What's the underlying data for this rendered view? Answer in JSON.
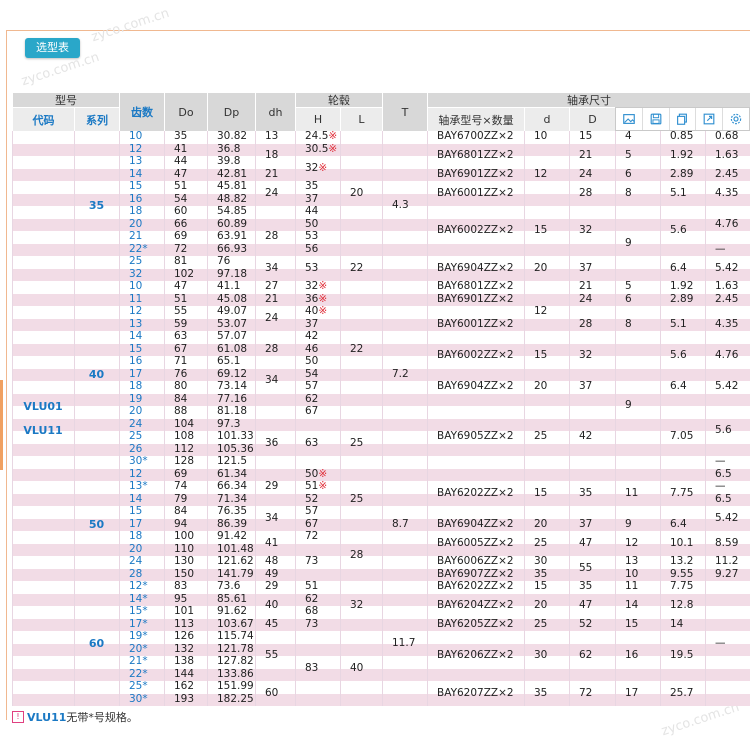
{
  "toolbar": {
    "select_table": "选型表"
  },
  "watermarks": [
    "zyco.com.cn",
    "zyco.com.cn",
    "zyco.com.cn"
  ],
  "header": {
    "model": "型号",
    "code": "代码",
    "series": "系列",
    "teeth": "齿数",
    "Do": "Do",
    "Dp": "Dp",
    "dh": "dh",
    "hub": "轮毂",
    "H": "H",
    "L": "L",
    "T": "T",
    "bearing_dims": "轴承尺寸",
    "bearing_model": "轴承型号×数量",
    "d": "d",
    "D": "D"
  },
  "icons": [
    "image-icon",
    "save-icon",
    "copy-icon",
    "export-icon",
    "settings-icon"
  ],
  "codes": [
    "VLU01",
    "VLU11"
  ],
  "series": [
    "35",
    "40",
    "50",
    "60"
  ],
  "rows": [
    [
      "10",
      "35",
      "30.82"
    ],
    [
      "12",
      "41",
      "36.8"
    ],
    [
      "13",
      "44",
      "39.8"
    ],
    [
      "14",
      "47",
      "42.81"
    ],
    [
      "15",
      "51",
      "45.81"
    ],
    [
      "16",
      "54",
      "48.82"
    ],
    [
      "18",
      "60",
      "54.85"
    ],
    [
      "20",
      "66",
      "60.89"
    ],
    [
      "21",
      "69",
      "63.91"
    ],
    [
      "22*",
      "72",
      "66.93"
    ],
    [
      "25",
      "81",
      "76"
    ],
    [
      "32",
      "102",
      "97.18"
    ],
    [
      "10",
      "47",
      "41.1"
    ],
    [
      "11",
      "51",
      "45.08"
    ],
    [
      "12",
      "55",
      "49.07"
    ],
    [
      "13",
      "59",
      "53.07"
    ],
    [
      "14",
      "63",
      "57.07"
    ],
    [
      "15",
      "67",
      "61.08"
    ],
    [
      "16",
      "71",
      "65.1"
    ],
    [
      "17",
      "76",
      "69.12"
    ],
    [
      "18",
      "80",
      "73.14"
    ],
    [
      "19",
      "84",
      "77.16"
    ],
    [
      "20",
      "88",
      "81.18"
    ],
    [
      "24",
      "104",
      "97.3"
    ],
    [
      "25",
      "108",
      "101.33"
    ],
    [
      "26",
      "112",
      "105.36"
    ],
    [
      "30*",
      "128",
      "121.5"
    ],
    [
      "12",
      "69",
      "61.34"
    ],
    [
      "13*",
      "74",
      "66.34"
    ],
    [
      "14",
      "79",
      "71.34"
    ],
    [
      "15",
      "84",
      "76.35"
    ],
    [
      "17",
      "94",
      "86.39"
    ],
    [
      "18",
      "100",
      "91.42"
    ],
    [
      "20",
      "110",
      "101.48"
    ],
    [
      "24",
      "130",
      "121.62"
    ],
    [
      "28",
      "150",
      "141.79"
    ],
    [
      "12*",
      "83",
      "73.6"
    ],
    [
      "14*",
      "95",
      "85.61"
    ],
    [
      "15*",
      "101",
      "91.62"
    ],
    [
      "17*",
      "113",
      "103.67"
    ],
    [
      "19*",
      "126",
      "115.74"
    ],
    [
      "20*",
      "132",
      "121.78"
    ],
    [
      "21*",
      "138",
      "127.82"
    ],
    [
      "22*",
      "144",
      "133.86"
    ],
    [
      "25*",
      "162",
      "151.99"
    ],
    [
      "30*",
      "193",
      "182.25"
    ]
  ],
  "dh": [
    {
      "r": [
        0,
        0
      ],
      "v": "13"
    },
    {
      "r": [
        1,
        2
      ],
      "v": "18"
    },
    {
      "r": [
        3,
        3
      ],
      "v": "21"
    },
    {
      "r": [
        4,
        5
      ],
      "v": "24"
    },
    {
      "r": [
        7,
        9
      ],
      "v": "28"
    },
    {
      "r": [
        10,
        11
      ],
      "v": "34"
    },
    {
      "r": [
        12,
        12
      ],
      "v": "27"
    },
    {
      "r": [
        13,
        13
      ],
      "v": "21"
    },
    {
      "r": [
        14,
        15
      ],
      "v": "24"
    },
    {
      "r": [
        16,
        18
      ],
      "v": "28"
    },
    {
      "r": [
        19,
        20
      ],
      "v": "34"
    },
    {
      "r": [
        23,
        26
      ],
      "v": "36"
    },
    {
      "r": [
        27,
        29
      ],
      "v": "29"
    },
    {
      "r": [
        30,
        31
      ],
      "v": "34"
    },
    {
      "r": [
        32,
        33
      ],
      "v": "41"
    },
    {
      "r": [
        34,
        34
      ],
      "v": "48"
    },
    {
      "r": [
        35,
        35
      ],
      "v": "49"
    },
    {
      "r": [
        36,
        36
      ],
      "v": "29"
    },
    {
      "r": [
        37,
        38
      ],
      "v": "40"
    },
    {
      "r": [
        39,
        39
      ],
      "v": "45"
    },
    {
      "r": [
        40,
        43
      ],
      "v": "55"
    },
    {
      "r": [
        44,
        45
      ],
      "v": "60"
    }
  ],
  "H": [
    {
      "r": [
        0,
        0
      ],
      "v": "24.5",
      "m": "※"
    },
    {
      "r": [
        1,
        1
      ],
      "v": "30.5",
      "m": "※"
    },
    {
      "r": [
        2,
        3
      ],
      "v": "32",
      "m": "※"
    },
    {
      "r": [
        4,
        4
      ],
      "v": "35"
    },
    {
      "r": [
        5,
        5
      ],
      "v": "37"
    },
    {
      "r": [
        6,
        6
      ],
      "v": "44"
    },
    {
      "r": [
        7,
        7
      ],
      "v": "50"
    },
    {
      "r": [
        8,
        8
      ],
      "v": "53"
    },
    {
      "r": [
        9,
        9
      ],
      "v": "56"
    },
    {
      "r": [
        10,
        11
      ],
      "v": "53"
    },
    {
      "r": [
        12,
        12
      ],
      "v": "32",
      "m": "※"
    },
    {
      "r": [
        13,
        13
      ],
      "v": "36",
      "m": "※"
    },
    {
      "r": [
        14,
        14
      ],
      "v": "40",
      "m": "※"
    },
    {
      "r": [
        15,
        15
      ],
      "v": "37"
    },
    {
      "r": [
        16,
        16
      ],
      "v": "42"
    },
    {
      "r": [
        17,
        17
      ],
      "v": "46"
    },
    {
      "r": [
        18,
        18
      ],
      "v": "50"
    },
    {
      "r": [
        19,
        19
      ],
      "v": "54"
    },
    {
      "r": [
        20,
        20
      ],
      "v": "57"
    },
    {
      "r": [
        21,
        21
      ],
      "v": "62"
    },
    {
      "r": [
        22,
        22
      ],
      "v": "67"
    },
    {
      "r": [
        23,
        26
      ],
      "v": "63"
    },
    {
      "r": [
        27,
        27
      ],
      "v": "50",
      "m": "※"
    },
    {
      "r": [
        28,
        28
      ],
      "v": "51",
      "m": "※"
    },
    {
      "r": [
        29,
        29
      ],
      "v": "52"
    },
    {
      "r": [
        30,
        30
      ],
      "v": "57"
    },
    {
      "r": [
        31,
        31
      ],
      "v": "67"
    },
    {
      "r": [
        32,
        32
      ],
      "v": "72"
    },
    {
      "r": [
        33,
        35
      ],
      "v": "73"
    },
    {
      "r": [
        36,
        36
      ],
      "v": "51"
    },
    {
      "r": [
        37,
        37
      ],
      "v": "62"
    },
    {
      "r": [
        38,
        38
      ],
      "v": "68"
    },
    {
      "r": [
        39,
        39
      ],
      "v": "73"
    },
    {
      "r": [
        40,
        45
      ],
      "v": "83"
    }
  ],
  "L": [
    {
      "r": [
        0,
        9
      ],
      "v": "20"
    },
    {
      "r": [
        10,
        11
      ],
      "v": "22"
    },
    {
      "r": [
        12,
        22
      ],
      "v": "22"
    },
    {
      "r": [
        23,
        26
      ],
      "v": "25"
    },
    {
      "r": [
        27,
        31
      ],
      "v": "25"
    },
    {
      "r": [
        32,
        35
      ],
      "v": "28"
    },
    {
      "r": [
        36,
        39
      ],
      "v": "32"
    },
    {
      "r": [
        40,
        45
      ],
      "v": "40"
    }
  ],
  "T": [
    {
      "r": [
        0,
        11
      ],
      "v": "4.3"
    },
    {
      "r": [
        12,
        26
      ],
      "v": "7.2"
    },
    {
      "r": [
        27,
        35
      ],
      "v": "8.7"
    },
    {
      "r": [
        36,
        45
      ],
      "v": "11.7"
    }
  ],
  "bearing": [
    {
      "r": [
        0,
        0
      ],
      "v": "BAY6700ZZ×2"
    },
    {
      "r": [
        1,
        2
      ],
      "v": "BAY6801ZZ×2"
    },
    {
      "r": [
        3,
        3
      ],
      "v": "BAY6901ZZ×2"
    },
    {
      "r": [
        4,
        5
      ],
      "v": "BAY6001ZZ×2"
    },
    {
      "r": [
        6,
        9
      ],
      "v": "BAY6002ZZ×2"
    },
    {
      "r": [
        10,
        11
      ],
      "v": "BAY6904ZZ×2"
    },
    {
      "r": [
        12,
        12
      ],
      "v": "BAY6801ZZ×2"
    },
    {
      "r": [
        13,
        13
      ],
      "v": "BAY6901ZZ×2"
    },
    {
      "r": [
        14,
        16
      ],
      "v": "BAY6001ZZ×2"
    },
    {
      "r": [
        17,
        18
      ],
      "v": "BAY6002ZZ×2"
    },
    {
      "r": [
        19,
        21
      ],
      "v": "BAY6904ZZ×2"
    },
    {
      "r": [
        22,
        26
      ],
      "v": "BAY6905ZZ×2"
    },
    {
      "r": [
        27,
        30
      ],
      "v": "BAY6202ZZ×2"
    },
    {
      "r": [
        31,
        31
      ],
      "v": "BAY6904ZZ×2"
    },
    {
      "r": [
        32,
        33
      ],
      "v": "BAY6005ZZ×2"
    },
    {
      "r": [
        34,
        34
      ],
      "v": "BAY6006ZZ×2"
    },
    {
      "r": [
        35,
        35
      ],
      "v": "BAY6907ZZ×2"
    },
    {
      "r": [
        36,
        36
      ],
      "v": "BAY6202ZZ×2"
    },
    {
      "r": [
        37,
        38
      ],
      "v": "BAY6204ZZ×2"
    },
    {
      "r": [
        39,
        39
      ],
      "v": "BAY6205ZZ×2"
    },
    {
      "r": [
        40,
        43
      ],
      "v": "BAY6206ZZ×2"
    },
    {
      "r": [
        44,
        45
      ],
      "v": "BAY6207ZZ×2"
    }
  ],
  "d": [
    {
      "r": [
        0,
        0
      ],
      "v": "10"
    },
    {
      "r": [
        1,
        5
      ],
      "v": "12"
    },
    {
      "r": [
        6,
        9
      ],
      "v": "15"
    },
    {
      "r": [
        10,
        11
      ],
      "v": "20"
    },
    {
      "r": [
        12,
        16
      ],
      "v": "12"
    },
    {
      "r": [
        17,
        18
      ],
      "v": "15"
    },
    {
      "r": [
        19,
        21
      ],
      "v": "20"
    },
    {
      "r": [
        22,
        26
      ],
      "v": "25"
    },
    {
      "r": [
        27,
        30
      ],
      "v": "15"
    },
    {
      "r": [
        31,
        31
      ],
      "v": "20"
    },
    {
      "r": [
        32,
        33
      ],
      "v": "25"
    },
    {
      "r": [
        34,
        34
      ],
      "v": "30"
    },
    {
      "r": [
        35,
        35
      ],
      "v": "35"
    },
    {
      "r": [
        36,
        36
      ],
      "v": "15"
    },
    {
      "r": [
        37,
        38
      ],
      "v": "20"
    },
    {
      "r": [
        39,
        39
      ],
      "v": "25"
    },
    {
      "r": [
        40,
        43
      ],
      "v": "30"
    },
    {
      "r": [
        44,
        45
      ],
      "v": "35"
    }
  ],
  "D": [
    {
      "r": [
        0,
        0
      ],
      "v": "15"
    },
    {
      "r": [
        1,
        2
      ],
      "v": "21"
    },
    {
      "r": [
        3,
        3
      ],
      "v": "24"
    },
    {
      "r": [
        4,
        5
      ],
      "v": "28"
    },
    {
      "r": [
        6,
        9
      ],
      "v": "32"
    },
    {
      "r": [
        10,
        11
      ],
      "v": "37"
    },
    {
      "r": [
        12,
        12
      ],
      "v": "21"
    },
    {
      "r": [
        13,
        13
      ],
      "v": "24"
    },
    {
      "r": [
        14,
        16
      ],
      "v": "28"
    },
    {
      "r": [
        17,
        18
      ],
      "v": "32"
    },
    {
      "r": [
        19,
        21
      ],
      "v": "37"
    },
    {
      "r": [
        22,
        26
      ],
      "v": "42"
    },
    {
      "r": [
        27,
        30
      ],
      "v": "35"
    },
    {
      "r": [
        31,
        31
      ],
      "v": "37"
    },
    {
      "r": [
        32,
        33
      ],
      "v": "47"
    },
    {
      "r": [
        34,
        35
      ],
      "v": "55"
    },
    {
      "r": [
        36,
        36
      ],
      "v": "35"
    },
    {
      "r": [
        37,
        38
      ],
      "v": "47"
    },
    {
      "r": [
        39,
        39
      ],
      "v": "52"
    },
    {
      "r": [
        40,
        43
      ],
      "v": "62"
    },
    {
      "r": [
        44,
        45
      ],
      "v": "72"
    }
  ],
  "c1": [
    {
      "r": [
        0,
        0
      ],
      "v": "4"
    },
    {
      "r": [
        1,
        2
      ],
      "v": "5"
    },
    {
      "r": [
        3,
        3
      ],
      "v": "6"
    },
    {
      "r": [
        4,
        5
      ],
      "v": "8"
    },
    {
      "r": [
        6,
        11
      ],
      "v": "9"
    },
    {
      "r": [
        12,
        12
      ],
      "v": "5"
    },
    {
      "r": [
        13,
        13
      ],
      "v": "6"
    },
    {
      "r": [
        14,
        16
      ],
      "v": "8"
    },
    {
      "r": [
        17,
        26
      ],
      "v": "9"
    },
    {
      "r": [
        27,
        30
      ],
      "v": "11"
    },
    {
      "r": [
        31,
        31
      ],
      "v": "9"
    },
    {
      "r": [
        32,
        33
      ],
      "v": "12"
    },
    {
      "r": [
        34,
        34
      ],
      "v": "13"
    },
    {
      "r": [
        35,
        35
      ],
      "v": "10"
    },
    {
      "r": [
        36,
        36
      ],
      "v": "11"
    },
    {
      "r": [
        37,
        38
      ],
      "v": "14"
    },
    {
      "r": [
        39,
        39
      ],
      "v": "15"
    },
    {
      "r": [
        40,
        43
      ],
      "v": "16"
    },
    {
      "r": [
        44,
        45
      ],
      "v": "17"
    }
  ],
  "c2": [
    {
      "r": [
        0,
        0
      ],
      "v": "0.85"
    },
    {
      "r": [
        1,
        2
      ],
      "v": "1.92"
    },
    {
      "r": [
        3,
        3
      ],
      "v": "2.89"
    },
    {
      "r": [
        4,
        5
      ],
      "v": "5.1"
    },
    {
      "r": [
        6,
        9
      ],
      "v": "5.6"
    },
    {
      "r": [
        10,
        11
      ],
      "v": "6.4"
    },
    {
      "r": [
        12,
        12
      ],
      "v": "1.92"
    },
    {
      "r": [
        13,
        13
      ],
      "v": "2.89"
    },
    {
      "r": [
        14,
        16
      ],
      "v": "5.1"
    },
    {
      "r": [
        17,
        18
      ],
      "v": "5.6"
    },
    {
      "r": [
        19,
        21
      ],
      "v": "6.4"
    },
    {
      "r": [
        22,
        26
      ],
      "v": "7.05"
    },
    {
      "r": [
        27,
        30
      ],
      "v": "7.75"
    },
    {
      "r": [
        31,
        31
      ],
      "v": "6.4"
    },
    {
      "r": [
        32,
        33
      ],
      "v": "10.1"
    },
    {
      "r": [
        34,
        34
      ],
      "v": "13.2"
    },
    {
      "r": [
        35,
        35
      ],
      "v": "9.55"
    },
    {
      "r": [
        36,
        36
      ],
      "v": "7.75"
    },
    {
      "r": [
        37,
        38
      ],
      "v": "12.8"
    },
    {
      "r": [
        39,
        39
      ],
      "v": "14"
    },
    {
      "r": [
        40,
        43
      ],
      "v": "19.5"
    },
    {
      "r": [
        44,
        45
      ],
      "v": "25.7"
    }
  ],
  "c3": [
    {
      "r": [
        0,
        0
      ],
      "v": "0.68"
    },
    {
      "r": [
        1,
        2
      ],
      "v": "1.63"
    },
    {
      "r": [
        3,
        3
      ],
      "v": "2.45"
    },
    {
      "r": [
        4,
        5
      ],
      "v": "4.35"
    },
    {
      "r": [
        6,
        8
      ],
      "v": "4.76"
    },
    {
      "r": [
        9,
        9
      ],
      "v": "—"
    },
    {
      "r": [
        10,
        11
      ],
      "v": "5.42"
    },
    {
      "r": [
        12,
        12
      ],
      "v": "1.63"
    },
    {
      "r": [
        13,
        13
      ],
      "v": "2.45"
    },
    {
      "r": [
        14,
        16
      ],
      "v": "4.35"
    },
    {
      "r": [
        17,
        18
      ],
      "v": "4.76"
    },
    {
      "r": [
        19,
        21
      ],
      "v": "5.42"
    },
    {
      "r": [
        22,
        25
      ],
      "v": "5.6"
    },
    {
      "r": [
        26,
        26
      ],
      "v": "—"
    },
    {
      "r": [
        27,
        27
      ],
      "v": "6.5"
    },
    {
      "r": [
        28,
        28
      ],
      "v": "—"
    },
    {
      "r": [
        29,
        29
      ],
      "v": "6.5"
    },
    {
      "r": [
        30,
        31
      ],
      "v": "5.42"
    },
    {
      "r": [
        32,
        33
      ],
      "v": "8.59"
    },
    {
      "r": [
        34,
        34
      ],
      "v": "11.2"
    },
    {
      "r": [
        35,
        35
      ],
      "v": "9.27"
    },
    {
      "r": [
        36,
        45
      ],
      "v": "—"
    }
  ],
  "footnote": {
    "code": "VLU11",
    "text": "无带*号规格。"
  }
}
